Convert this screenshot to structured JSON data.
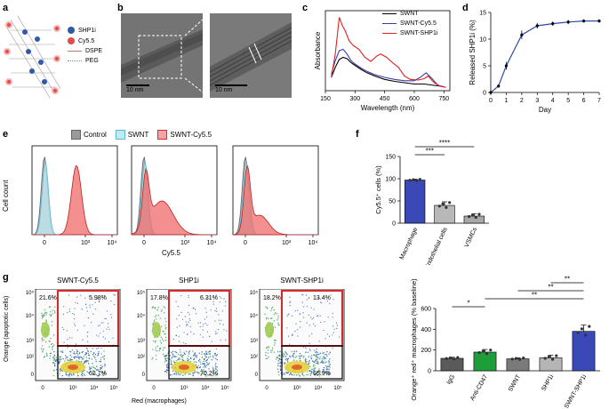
{
  "panels": {
    "a": {
      "letter": "a",
      "legend": [
        {
          "label": "SHP1i",
          "color": "#2f5aa8"
        },
        {
          "label": "Cy5.5",
          "color": "#e44a4a"
        },
        {
          "label": "DSPE",
          "color": "#b87a6b"
        },
        {
          "label": "PEG",
          "color": "#8a8a8a"
        }
      ]
    },
    "b": {
      "letter": "b",
      "scale_left": "10 nm",
      "scale_right": "10 nm"
    },
    "c": {
      "letter": "c",
      "legend": [
        {
          "label": "SWNT",
          "color": "#000000"
        },
        {
          "label": "SWNT-Cy5.5",
          "color": "#3a3db0"
        },
        {
          "label": "SWNT-SHP1i",
          "color": "#e02020"
        }
      ]
    },
    "d": {
      "letter": "d"
    },
    "e": {
      "letter": "e",
      "legend": [
        {
          "label": "Control",
          "color": "#9a9a9a"
        },
        {
          "label": "SWNT",
          "color": "#7fd3e8"
        },
        {
          "label": "SWNT-Cy5.5",
          "color": "#ef6a6a"
        }
      ],
      "ylabel": "Cell count",
      "xlabel": "Cy5.5",
      "tick_labels": [
        "0",
        "10³",
        "10⁴"
      ]
    },
    "f": {
      "letter": "f"
    },
    "g": {
      "letter": "g",
      "plots": [
        {
          "title": "SWNT-Cy5.5",
          "ul": "21.6%",
          "ur": "5.98%",
          "lr": "62.7%"
        },
        {
          "title": "SHP1i",
          "ul": "17.8%",
          "ur": "6.31%",
          "lr": "70.2%"
        },
        {
          "title": "SWNT-SHP1i",
          "ul": "18.2%",
          "ur": "13.4%",
          "lr": "66.9%"
        }
      ],
      "ylabel": "Orange (apoptotic cells)",
      "xlabel": "Red (macrophages)",
      "y_ticks": [
        "10⁵",
        "10⁴",
        "10³",
        "10²",
        "0"
      ],
      "x_ticks": [
        "0",
        "10³",
        "10⁴",
        "10⁵"
      ]
    }
  },
  "chart_data": [
    {
      "id": "c",
      "type": "line",
      "title": "",
      "xlabel": "Wavelength (nm)",
      "ylabel": "Absorbance",
      "xlim": [
        150,
        780
      ],
      "xticks": [
        150,
        300,
        450,
        600,
        750
      ],
      "series": [
        {
          "name": "SWNT",
          "color": "#000000",
          "x": [
            180,
            200,
            220,
            240,
            260,
            280,
            300,
            330,
            360,
            400,
            450,
            500,
            550,
            600,
            650,
            700,
            750
          ],
          "y": [
            0.2,
            0.35,
            0.47,
            0.5,
            0.48,
            0.42,
            0.38,
            0.32,
            0.27,
            0.22,
            0.17,
            0.14,
            0.12,
            0.1,
            0.1,
            0.08,
            0.06
          ]
        },
        {
          "name": "SWNT-Cy5.5",
          "color": "#3a3db0",
          "x": [
            180,
            200,
            220,
            240,
            260,
            280,
            300,
            330,
            360,
            400,
            450,
            500,
            550,
            600,
            630,
            660,
            690,
            720,
            750
          ],
          "y": [
            0.25,
            0.45,
            0.6,
            0.62,
            0.55,
            0.45,
            0.4,
            0.34,
            0.29,
            0.24,
            0.2,
            0.17,
            0.15,
            0.15,
            0.2,
            0.27,
            0.18,
            0.08,
            0.06
          ]
        },
        {
          "name": "SWNT-SHP1i",
          "color": "#e02020",
          "x": [
            180,
            200,
            220,
            235,
            250,
            270,
            290,
            320,
            350,
            380,
            410,
            430,
            460,
            490,
            520,
            550,
            580,
            620,
            650,
            670,
            700,
            730,
            760
          ],
          "y": [
            0.2,
            0.55,
            1.1,
            0.98,
            0.9,
            0.75,
            0.68,
            0.62,
            0.5,
            0.44,
            0.52,
            0.55,
            0.5,
            0.42,
            0.35,
            0.22,
            0.17,
            0.16,
            0.18,
            0.22,
            0.12,
            0.07,
            0.05
          ]
        }
      ]
    },
    {
      "id": "d",
      "type": "line",
      "title": "",
      "xlabel": "Day",
      "ylabel": "Released SHP1i (%)",
      "ylim": [
        0,
        15
      ],
      "yticks": [
        0,
        5,
        10,
        15
      ],
      "xlim": [
        0,
        7
      ],
      "xticks": [
        0,
        1,
        2,
        3,
        4,
        5,
        6,
        7
      ],
      "series": [
        {
          "name": "Released SHP1i",
          "color": "#2f4aa8",
          "x": [
            0,
            0.5,
            1,
            2,
            3,
            4,
            5,
            6,
            7
          ],
          "y": [
            0,
            1.2,
            5,
            10.8,
            12.5,
            12.9,
            13.2,
            13.4,
            13.4
          ],
          "err": [
            0,
            0.3,
            0.7,
            0.8,
            0.5,
            0.4,
            0.4,
            0.3,
            0.3
          ]
        }
      ]
    },
    {
      "id": "f",
      "type": "bar",
      "title": "",
      "xlabel": "",
      "ylabel": "Cy5.5⁺ cells (%)",
      "ylim": [
        0,
        150
      ],
      "yticks": [
        0,
        50,
        100,
        150
      ],
      "categories": [
        "Macrophage",
        "Endothelial cells",
        "VSMCs"
      ],
      "values": [
        97,
        40,
        16
      ],
      "errors": [
        2,
        8,
        5
      ],
      "colors": [
        "#3a49b5",
        "#b8b8b8",
        "#a8a8a8"
      ],
      "significance": [
        {
          "from": 0,
          "to": 1,
          "label": "***"
        },
        {
          "from": 0,
          "to": 2,
          "label": "****"
        }
      ]
    },
    {
      "id": "g-bar",
      "type": "bar",
      "title": "",
      "xlabel": "",
      "ylabel": "Orange⁺ red⁺ macrophages (% baseline)",
      "ylim": [
        0,
        600
      ],
      "yticks": [
        0,
        200,
        400,
        600
      ],
      "categories": [
        "IgG",
        "Anti-CD47",
        "SWNT",
        "SHP1i",
        "SWNT-SHP1i"
      ],
      "values": [
        120,
        180,
        115,
        125,
        380
      ],
      "errors": [
        10,
        25,
        10,
        25,
        60
      ],
      "colors": [
        "#5a5a5a",
        "#1e9e3a",
        "#7a7a7a",
        "#b5b5b5",
        "#3a49b5"
      ],
      "significance": [
        {
          "from": 0,
          "to": 1,
          "label": "*"
        },
        {
          "from": 1,
          "to": 4,
          "label": "**"
        },
        {
          "from": 2,
          "to": 4,
          "label": "**"
        },
        {
          "from": 3,
          "to": 4,
          "label": "**"
        }
      ]
    }
  ]
}
